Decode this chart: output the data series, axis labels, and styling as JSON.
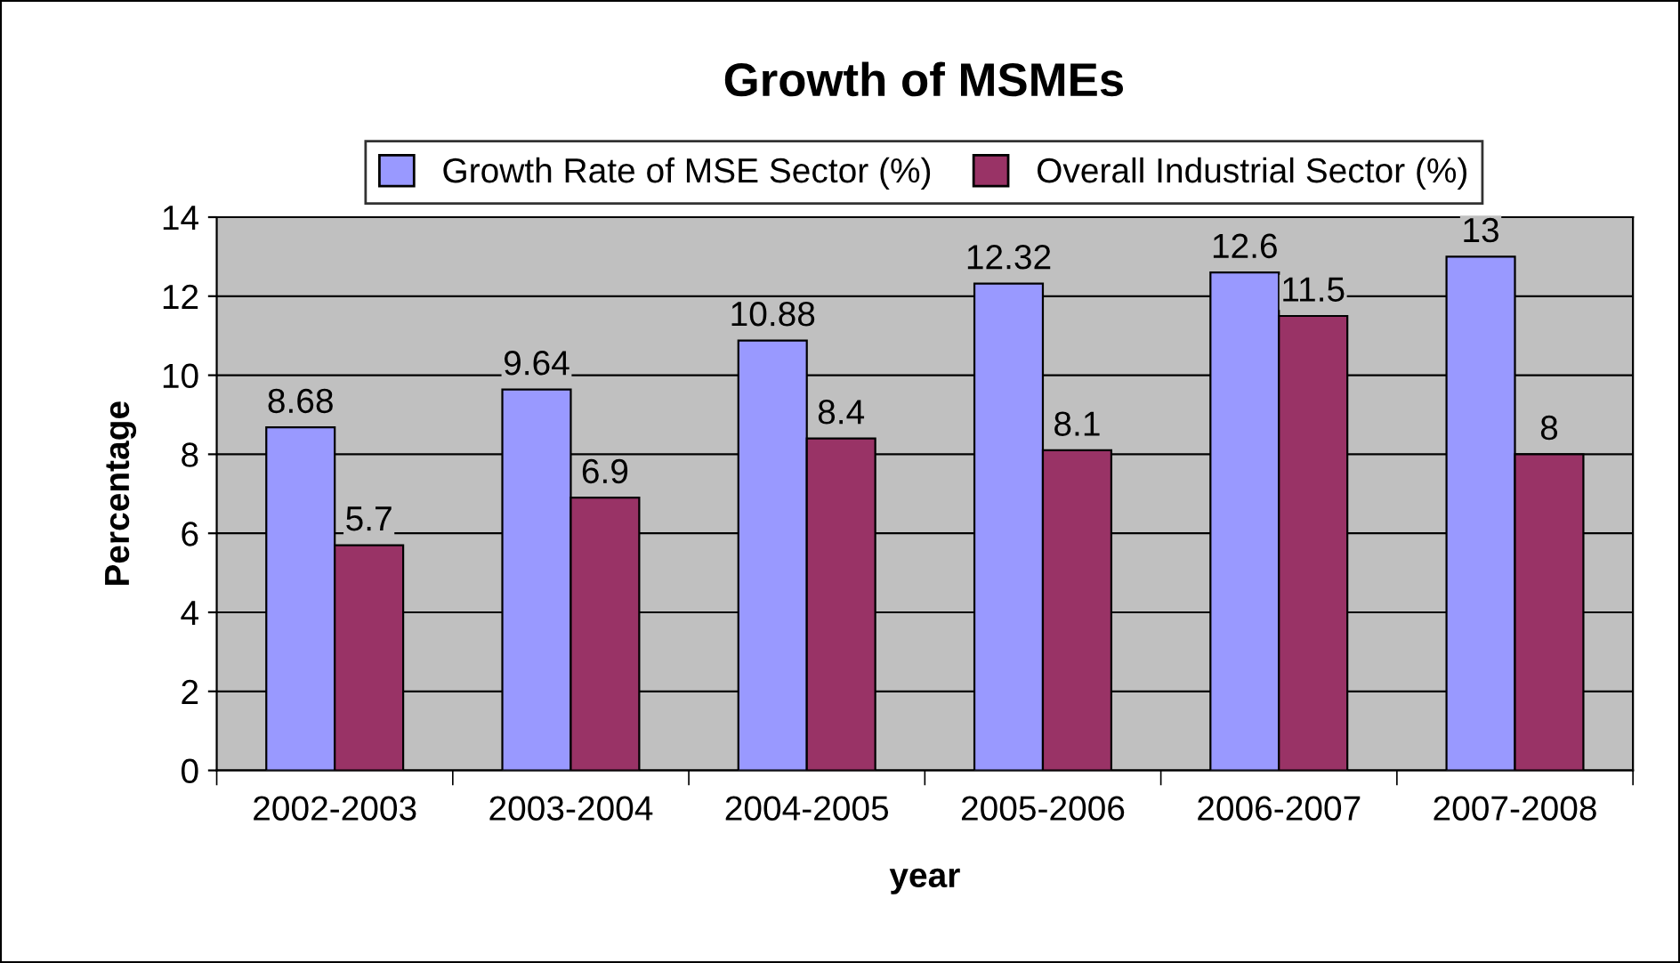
{
  "chart_data": {
    "type": "bar",
    "title": "Growth of MSMEs",
    "xlabel": "year",
    "ylabel": "Percentage",
    "categories": [
      "2002-2003",
      "2003-2004",
      "2004-2005",
      "2005-2006",
      "2006-2007",
      "2007-2008"
    ],
    "series": [
      {
        "name": "Growth Rate of MSE Sector (%)",
        "color": "#9999ff",
        "values": [
          8.68,
          9.64,
          10.88,
          12.32,
          12.6,
          13
        ]
      },
      {
        "name": "Overall Industrial Sector (%)",
        "color": "#993366",
        "values": [
          5.7,
          6.9,
          8.4,
          8.1,
          11.5,
          8
        ]
      }
    ],
    "ylim": [
      0,
      14
    ],
    "yticks": [
      0,
      2,
      4,
      6,
      8,
      10,
      12,
      14
    ],
    "grid": "y",
    "legend": "top",
    "data_labels": true
  }
}
